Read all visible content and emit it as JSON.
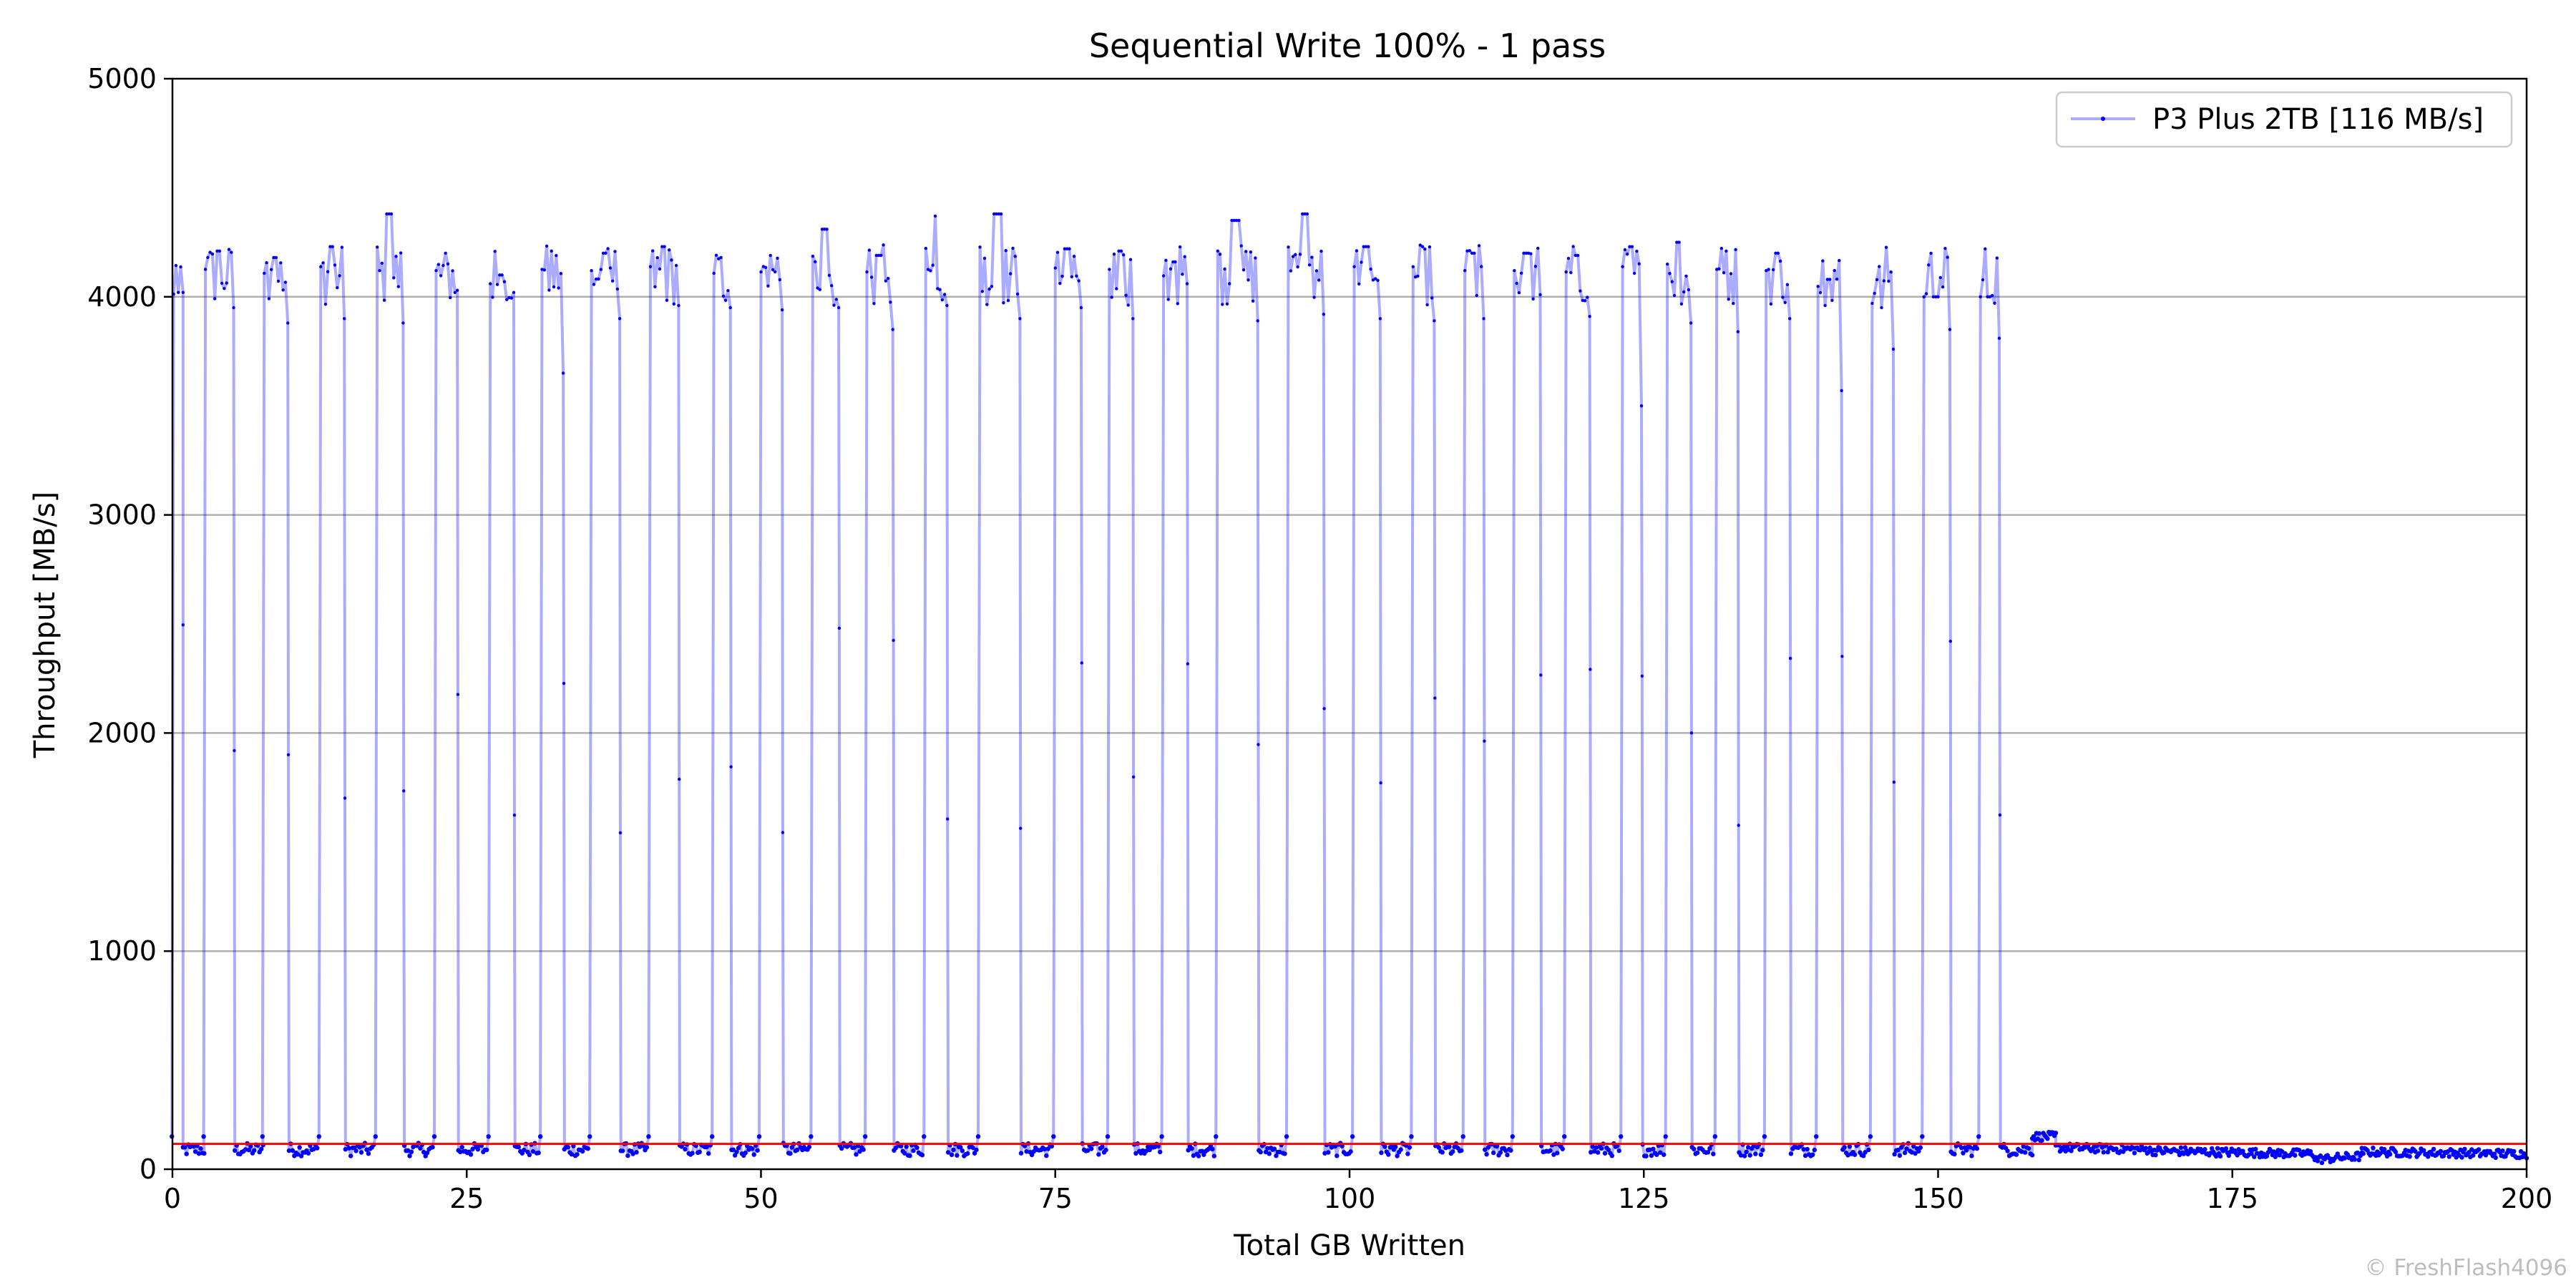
{
  "chart_data": {
    "type": "line",
    "title": "Sequential Write 100% - 1 pass",
    "xlabel": "Total GB Written",
    "ylabel": "Throughput [MB/s]",
    "xlim": [
      0,
      200
    ],
    "ylim": [
      0,
      5000
    ],
    "xticks": [
      0,
      25,
      50,
      75,
      100,
      125,
      150,
      175,
      200
    ],
    "yticks": [
      0,
      1000,
      2000,
      3000,
      4000,
      5000
    ],
    "grid": "horizontal",
    "legend_position": "top-right",
    "series": [
      {
        "name": "P3 Plus 2TB [116 MB/s]",
        "color": "#0000ff",
        "bursts": [
          [
            0.1,
            0.9,
            4020,
            4020,
            0.9,
            2.7
          ],
          [
            2.8,
            5.2,
            4210,
            3950,
            5.3,
            7.7
          ],
          [
            7.8,
            9.8,
            4180,
            3880,
            9.9,
            12.3
          ],
          [
            12.6,
            14.6,
            4230,
            3900,
            14.7,
            17.1
          ],
          [
            17.4,
            19.6,
            4380,
            3880,
            19.7,
            22.1
          ],
          [
            22.4,
            24.2,
            4200,
            4030,
            24.3,
            26.7
          ],
          [
            27.0,
            29.0,
            4100,
            4020,
            29.1,
            31.1
          ],
          [
            31.4,
            33.2,
            4210,
            3650,
            33.3,
            35.3
          ],
          [
            35.6,
            38.0,
            4200,
            3900,
            38.1,
            40.3
          ],
          [
            40.6,
            43.0,
            4230,
            3960,
            43.1,
            45.7
          ],
          [
            46.0,
            47.4,
            4180,
            3950,
            47.5,
            49.7
          ],
          [
            50.0,
            51.8,
            4190,
            3940,
            51.9,
            54.1
          ],
          [
            54.4,
            56.6,
            4310,
            3950,
            56.7,
            58.7
          ],
          [
            59.0,
            61.2,
            4190,
            3850,
            61.3,
            63.7
          ],
          [
            64.0,
            65.8,
            4370,
            3960,
            65.9,
            68.3
          ],
          [
            68.6,
            72.0,
            4380,
            3900,
            72.1,
            74.7
          ],
          [
            75.0,
            77.2,
            4220,
            3950,
            77.3,
            79.3
          ],
          [
            79.6,
            81.6,
            4210,
            3900,
            81.7,
            83.9
          ],
          [
            84.2,
            86.2,
            4160,
            4060,
            86.3,
            88.5
          ],
          [
            88.8,
            92.2,
            4350,
            3890,
            92.3,
            94.5
          ],
          [
            94.8,
            97.8,
            4380,
            3920,
            97.9,
            100.1
          ],
          [
            100.4,
            102.6,
            4230,
            3900,
            102.7,
            105.1
          ],
          [
            105.4,
            107.2,
            4230,
            3890,
            107.3,
            109.5
          ],
          [
            109.8,
            111.4,
            4200,
            3900,
            111.5,
            113.7
          ],
          [
            114.0,
            116.2,
            4200,
            4010,
            116.3,
            118.1
          ],
          [
            118.4,
            120.4,
            4190,
            3910,
            120.5,
            122.9
          ],
          [
            123.2,
            124.8,
            4230,
            3500,
            124.9,
            126.7
          ],
          [
            127.0,
            129.0,
            4250,
            3880,
            129.1,
            130.9
          ],
          [
            131.2,
            133.0,
            4210,
            3840,
            133.1,
            135.1
          ],
          [
            135.4,
            137.4,
            4200,
            3900,
            137.5,
            139.5
          ],
          [
            139.8,
            141.8,
            4080,
            3570,
            141.9,
            144.1
          ],
          [
            144.4,
            146.2,
            3950,
            3760,
            146.3,
            148.5
          ],
          [
            148.8,
            151.0,
            4000,
            3850,
            151.1,
            153.3
          ],
          [
            153.6,
            155.2,
            4000,
            3810,
            155.3,
            158.0
          ]
        ],
        "tail": [
          [
            158.0,
            160.0,
            150,
            150
          ],
          [
            160.0,
            168.0,
            100,
            90
          ],
          [
            168.0,
            182.0,
            85,
            70
          ],
          [
            182.0,
            186.0,
            45,
            60
          ],
          [
            186.0,
            200.0,
            80,
            70
          ]
        ]
      }
    ],
    "reference_line": {
      "y": 116,
      "color": "#ff0000"
    },
    "credit": "© FreshFlash4096"
  }
}
